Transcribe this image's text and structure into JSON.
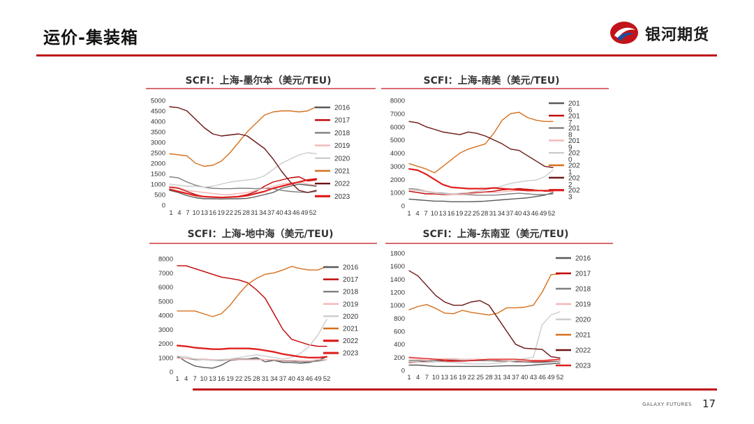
{
  "slide": {
    "title": "运价-集装箱",
    "brand": "银河期货",
    "footer_brand": "GALAXY FUTURES",
    "page_number": "17",
    "colors": {
      "accent": "#c0141a",
      "logo_blue": "#1a4fa0"
    }
  },
  "chart_data": [
    {
      "type": "line",
      "title": "SCFI：上海-墨尔本（美元/TEU)",
      "x_tick_labels": [
        "1",
        "4",
        "7",
        "10",
        "13",
        "16",
        "19",
        "22",
        "25",
        "28",
        "31",
        "34",
        "37",
        "40",
        "43",
        "46",
        "49",
        "52"
      ],
      "y_ticks": [
        "0",
        "500",
        "1000",
        "1500",
        "2000",
        "2500",
        "3000",
        "3500",
        "4000",
        "4500",
        "5000"
      ],
      "ylim": [
        0,
        5000
      ],
      "grid": false,
      "legend_position": "right",
      "series": [
        {
          "name": "2016",
          "color": "#595959",
          "width": 1.4,
          "values": [
            700,
            600,
            450,
            350,
            300,
            300,
            290,
            300,
            300,
            320,
            400,
            500,
            600,
            800,
            900,
            1000,
            950,
            900
          ]
        },
        {
          "name": "2017",
          "color": "#c00000",
          "width": 1.4,
          "values": [
            850,
            800,
            650,
            500,
            400,
            380,
            370,
            380,
            420,
            500,
            650,
            900,
            1100,
            1200,
            1300,
            1350,
            1150,
            1200
          ]
        },
        {
          "name": "2018",
          "color": "#7f7f7f",
          "width": 1.4,
          "values": [
            1350,
            1300,
            1100,
            950,
            850,
            800,
            780,
            780,
            800,
            800,
            780,
            800,
            780,
            700,
            650,
            620,
            600,
            650
          ]
        },
        {
          "name": "2019",
          "color": "#f4b6b6",
          "width": 1.4,
          "values": [
            900,
            850,
            700,
            650,
            600,
            550,
            500,
            500,
            550,
            600,
            700,
            800,
            900,
            1000,
            1050,
            1100,
            1000,
            950
          ]
        },
        {
          "name": "2020",
          "color": "#cccccc",
          "width": 1.4,
          "values": [
            1000,
            950,
            900,
            900,
            850,
            900,
            1000,
            1100,
            1150,
            1200,
            1250,
            1400,
            1700,
            2000,
            2200,
            2400,
            2500,
            2450
          ]
        },
        {
          "name": "2021",
          "color": "#d6701c",
          "width": 1.4,
          "values": [
            2450,
            2400,
            2350,
            2000,
            1850,
            1900,
            2100,
            2500,
            3000,
            3500,
            3900,
            4300,
            4450,
            4500,
            4500,
            4450,
            4500,
            4700
          ]
        },
        {
          "name": "2022",
          "color": "#6b1414",
          "width": 1.4,
          "values": [
            4700,
            4650,
            4500,
            4100,
            3700,
            3400,
            3300,
            3350,
            3400,
            3300,
            3000,
            2700,
            2200,
            1600,
            1100,
            700,
            600,
            700
          ]
        },
        {
          "name": "2023",
          "color": "#e02020",
          "width": 2.2,
          "values": [
            750,
            650,
            550,
            450,
            400,
            380,
            360,
            380,
            400,
            450,
            550,
            650,
            800,
            900,
            1000,
            1100,
            1200,
            1250
          ]
        }
      ]
    },
    {
      "type": "line",
      "title": "SCFI：上海-南美（美元/TEU)",
      "x_tick_labels": [
        "1",
        "4",
        "7",
        "10",
        "13",
        "16",
        "19",
        "22",
        "25",
        "28",
        "31",
        "34",
        "37",
        "40",
        "43",
        "46",
        "49",
        "52"
      ],
      "y_ticks": [
        "0",
        "1000",
        "2000",
        "3000",
        "4000",
        "5000",
        "6000",
        "7000",
        "8000"
      ],
      "ylim": [
        0,
        8000
      ],
      "grid": false,
      "legend_position": "right",
      "legend_wrapped": true,
      "series": [
        {
          "name": "2016",
          "color": "#595959",
          "width": 1.4,
          "values": [
            500,
            450,
            400,
            350,
            350,
            300,
            300,
            300,
            320,
            350,
            400,
            450,
            500,
            550,
            600,
            700,
            800,
            1000
          ]
        },
        {
          "name": "2017",
          "color": "#c00000",
          "width": 1.4,
          "values": [
            1100,
            1000,
            900,
            900,
            850,
            850,
            900,
            950,
            1000,
            1050,
            1100,
            1200,
            1250,
            1300,
            1250,
            1200,
            1100,
            1100
          ]
        },
        {
          "name": "2018",
          "color": "#7f7f7f",
          "width": 1.4,
          "values": [
            1300,
            1250,
            1100,
            1000,
            950,
            900,
            850,
            850,
            800,
            800,
            800,
            850,
            900,
            950,
            900,
            850,
            850,
            900
          ]
        },
        {
          "name": "2019",
          "color": "#f4b6b6",
          "width": 1.4,
          "values": [
            1250,
            1200,
            1100,
            1000,
            900,
            850,
            850,
            900,
            950,
            1000,
            1000,
            1050,
            1100,
            1150,
            1150,
            1200,
            1150,
            1100
          ]
        },
        {
          "name": "2020",
          "color": "#cccccc",
          "width": 1.4,
          "values": [
            1200,
            1150,
            1050,
            950,
            900,
            900,
            950,
            1000,
            1100,
            1200,
            1350,
            1500,
            1700,
            1800,
            1900,
            1950,
            2200,
            2700
          ]
        },
        {
          "name": "2021",
          "color": "#d6701c",
          "width": 1.4,
          "values": [
            3200,
            3000,
            2800,
            2500,
            3000,
            3500,
            4000,
            4300,
            4500,
            4700,
            5500,
            6500,
            7000,
            7100,
            6700,
            6500,
            6400,
            6400
          ]
        },
        {
          "name": "2022",
          "color": "#6b1414",
          "width": 1.4,
          "values": [
            6400,
            6300,
            6000,
            5800,
            5600,
            5500,
            5400,
            5600,
            5500,
            5300,
            5000,
            4700,
            4300,
            4200,
            3800,
            3400,
            3000,
            2900
          ]
        },
        {
          "name": "2023",
          "color": "#e02020",
          "width": 2.2,
          "values": [
            2800,
            2700,
            2400,
            2000,
            1600,
            1400,
            1350,
            1300,
            1300,
            1300,
            1350,
            1300,
            1250,
            1200,
            1150,
            1150,
            1150,
            1150
          ]
        }
      ]
    },
    {
      "type": "line",
      "title": "SCFI：上海-地中海（美元/TEU)",
      "x_tick_labels": [
        "1",
        "4",
        "7",
        "10",
        "13",
        "16",
        "19",
        "22",
        "25",
        "28",
        "31",
        "34",
        "37",
        "40",
        "43",
        "46",
        "49",
        "52"
      ],
      "y_ticks": [
        "0",
        "1000",
        "2000",
        "3000",
        "4000",
        "5000",
        "6000",
        "7000",
        "8000"
      ],
      "ylim": [
        0,
        8000
      ],
      "grid": false,
      "legend_position": "right",
      "series": [
        {
          "name": "2016",
          "color": "#595959",
          "width": 1.4,
          "values": [
            1100,
            700,
            400,
            300,
            250,
            450,
            800,
            850,
            900,
            1000,
            700,
            800,
            650,
            650,
            600,
            650,
            800,
            1050
          ]
        },
        {
          "name": "2017",
          "color": "#c00000",
          "width": 1.4,
          "values": [
            7500,
            7500,
            7300,
            7100,
            6900,
            6700,
            6600,
            6500,
            6300,
            5800,
            5200,
            4100,
            3000,
            2300,
            2100,
            1900,
            1800,
            1800
          ]
        },
        {
          "name": "2018",
          "color": "#7f7f7f",
          "width": 1.4,
          "values": [
            1000,
            950,
            850,
            850,
            800,
            800,
            850,
            900,
            900,
            900,
            850,
            800,
            750,
            750,
            700,
            700,
            750,
            850
          ]
        },
        {
          "name": "2019",
          "color": "#f4b6b6",
          "width": 1.4,
          "values": [
            950,
            950,
            900,
            900,
            850,
            850,
            850,
            850,
            850,
            850,
            850,
            850,
            800,
            800,
            800,
            800,
            850,
            850
          ]
        },
        {
          "name": "2020",
          "color": "#cccccc",
          "width": 1.4,
          "values": [
            1100,
            1050,
            900,
            850,
            800,
            850,
            900,
            1000,
            1100,
            1200,
            1100,
            1000,
            900,
            1000,
            1300,
            1800,
            2600,
            3700
          ]
        },
        {
          "name": "2021",
          "color": "#d6701c",
          "width": 1.4,
          "values": [
            4300,
            4300,
            4300,
            4100,
            3900,
            4100,
            4700,
            5500,
            6200,
            6600,
            6900,
            7000,
            7200,
            7450,
            7300,
            7200,
            7200,
            7450
          ]
        },
        {
          "name": "2022",
          "color": "#e02020",
          "width": 2.2,
          "values": [
            1850,
            1800,
            1700,
            1650,
            1600,
            1600,
            1650,
            1650,
            1650,
            1600,
            1500,
            1400,
            1250,
            1150,
            1050,
            1000,
            1000,
            1050
          ]
        },
        {
          "name": "2023",
          "color": "#e02020",
          "width": 2.2,
          "values": [
            1850,
            1800,
            1700,
            1650,
            1600,
            1600,
            1650,
            1650,
            1650,
            1600,
            1500,
            1400,
            1250,
            1150,
            1050,
            1000,
            1000,
            1050
          ]
        }
      ]
    },
    {
      "type": "line",
      "title": "SCFI：上海-东南亚（美元/TEU)",
      "x_tick_labels": [
        "1",
        "4",
        "7",
        "10",
        "13",
        "16",
        "19",
        "22",
        "25",
        "28",
        "31",
        "34",
        "37",
        "40",
        "43",
        "46",
        "49",
        "52"
      ],
      "y_ticks": [
        "0",
        "200",
        "400",
        "600",
        "800",
        "1000",
        "1200",
        "1400",
        "1600",
        "1800"
      ],
      "ylim": [
        0,
        1800
      ],
      "grid": false,
      "legend_position": "right",
      "series": [
        {
          "name": "2016",
          "color": "#595959",
          "width": 1.4,
          "values": [
            80,
            80,
            70,
            60,
            60,
            60,
            60,
            60,
            60,
            60,
            65,
            70,
            70,
            70,
            80,
            90,
            100,
            110
          ]
        },
        {
          "name": "2017",
          "color": "#c00000",
          "width": 1.4,
          "values": [
            120,
            130,
            140,
            150,
            140,
            140,
            140,
            150,
            150,
            150,
            150,
            150,
            140,
            130,
            130,
            130,
            140,
            150
          ]
        },
        {
          "name": "2018",
          "color": "#7f7f7f",
          "width": 1.4,
          "values": [
            150,
            150,
            140,
            150,
            160,
            160,
            150,
            150,
            150,
            150,
            140,
            140,
            130,
            130,
            120,
            120,
            130,
            140
          ]
        },
        {
          "name": "2019",
          "color": "#f4b6b6",
          "width": 1.4,
          "values": [
            180,
            170,
            160,
            170,
            180,
            180,
            170,
            170,
            170,
            160,
            160,
            150,
            150,
            150,
            150,
            150,
            150,
            150
          ]
        },
        {
          "name": "2020",
          "color": "#cccccc",
          "width": 1.4,
          "values": [
            130,
            130,
            120,
            130,
            130,
            120,
            110,
            100,
            100,
            100,
            110,
            130,
            150,
            180,
            200,
            700,
            850,
            900
          ]
        },
        {
          "name": "2021",
          "color": "#d6701c",
          "width": 1.4,
          "values": [
            930,
            980,
            1010,
            950,
            880,
            870,
            920,
            890,
            870,
            850,
            880,
            960,
            960,
            970,
            1000,
            1200,
            1470,
            1480
          ]
        },
        {
          "name": "2022",
          "color": "#6b1414",
          "width": 1.4,
          "values": [
            1530,
            1450,
            1300,
            1150,
            1050,
            1000,
            1000,
            1050,
            1070,
            1000,
            800,
            600,
            400,
            340,
            330,
            320,
            210,
            190
          ]
        },
        {
          "name": "2023",
          "color": "#e02020",
          "width": 1.4,
          "values": [
            200,
            190,
            180,
            170,
            160,
            150,
            140,
            150,
            160,
            170,
            170,
            170,
            170,
            160,
            150,
            150,
            160,
            170
          ]
        }
      ]
    }
  ]
}
